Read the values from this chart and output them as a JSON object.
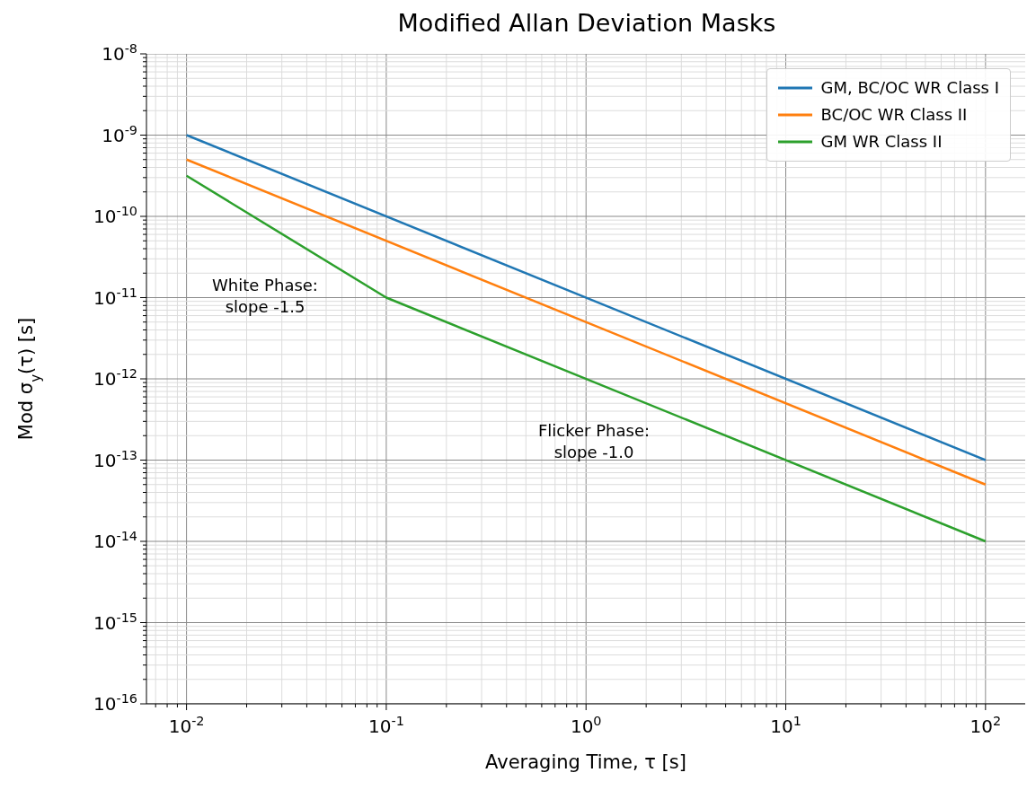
{
  "chart_data": {
    "type": "line",
    "title": "Modified Allan Deviation Masks",
    "xlabel": "Averaging Time, τ [s]",
    "ylabel": "Mod σ$_{y}$(τ) [s]",
    "series": [
      {
        "name": "GM, BC/OC WR Class I",
        "color": "#1f77b4",
        "x": [
          0.01,
          100
        ],
        "values": [
          1e-09,
          1e-13
        ]
      },
      {
        "name": "BC/OC WR Class II",
        "color": "#ff7f0e",
        "x": [
          0.01,
          100
        ],
        "values": [
          5e-10,
          5e-14
        ]
      },
      {
        "name": "GM WR Class II",
        "color": "#2ca02c",
        "x": [
          0.01,
          0.1,
          100
        ],
        "values": [
          3.16e-10,
          1e-11,
          1e-14
        ]
      }
    ],
    "annotations": [
      "White Phase:\nslope -1.5",
      "Flicker Phase:\nslope -1.0"
    ],
    "log": "xy",
    "grid": true,
    "legend": "top right",
    "xlim": [
      0.0063,
      158
    ],
    "ylim": [
      1e-16,
      1e-08
    ],
    "xticks": [
      {
        "value": 0.007,
        "label": null
      },
      {
        "value": 0.008,
        "label": null
      },
      {
        "value": 0.009,
        "label": null
      },
      {
        "value": 0.01,
        "label": "10$^{-2}$"
      },
      {
        "value": 0.02,
        "label": null
      },
      {
        "value": 0.03,
        "label": null
      },
      {
        "value": 0.04,
        "label": null
      },
      {
        "value": 0.05,
        "label": null
      },
      {
        "value": 0.06,
        "label": null
      },
      {
        "value": 0.07,
        "label": null
      },
      {
        "value": 0.08,
        "label": null
      },
      {
        "value": 0.09,
        "label": null
      },
      {
        "value": 0.1,
        "label": "10$^{-1}$"
      },
      {
        "value": 0.2,
        "label": null
      },
      {
        "value": 0.3,
        "label": null
      },
      {
        "value": 0.4,
        "label": null
      },
      {
        "value": 0.5,
        "label": null
      },
      {
        "value": 0.6,
        "label": null
      },
      {
        "value": 0.7,
        "label": null
      },
      {
        "value": 0.8,
        "label": null
      },
      {
        "value": 0.9,
        "label": null
      },
      {
        "value": 1,
        "label": "10$^{0}$"
      },
      {
        "value": 2,
        "label": null
      },
      {
        "value": 3,
        "label": null
      },
      {
        "value": 4,
        "label": null
      },
      {
        "value": 5,
        "label": null
      },
      {
        "value": 6,
        "label": null
      },
      {
        "value": 7,
        "label": null
      },
      {
        "value": 8,
        "label": null
      },
      {
        "value": 9,
        "label": null
      },
      {
        "value": 10,
        "label": "10$^{1}$"
      },
      {
        "value": 20,
        "label": null
      },
      {
        "value": 30,
        "label": null
      },
      {
        "value": 40,
        "label": null
      },
      {
        "value": 50,
        "label": null
      },
      {
        "value": 60,
        "label": null
      },
      {
        "value": 70,
        "label": null
      },
      {
        "value": 80,
        "label": null
      },
      {
        "value": 90,
        "label": null
      },
      {
        "value": 100,
        "label": "10$^{2}$"
      }
    ],
    "yticks": [
      {
        "value": 1e-16,
        "label": "10$^{-16}$"
      },
      {
        "value": 2e-16,
        "label": null
      },
      {
        "value": 3e-16,
        "label": null
      },
      {
        "value": 4e-16,
        "label": null
      },
      {
        "value": 5e-16,
        "label": null
      },
      {
        "value": 6e-16,
        "label": null
      },
      {
        "value": 7e-16,
        "label": null
      },
      {
        "value": 8e-16,
        "label": null
      },
      {
        "value": 9e-16,
        "label": null
      },
      {
        "value": 1e-15,
        "label": "10$^{-15}$"
      },
      {
        "value": 2e-15,
        "label": null
      },
      {
        "value": 3e-15,
        "label": null
      },
      {
        "value": 4e-15,
        "label": null
      },
      {
        "value": 5e-15,
        "label": null
      },
      {
        "value": 6e-15,
        "label": null
      },
      {
        "value": 7e-15,
        "label": null
      },
      {
        "value": 8e-15,
        "label": null
      },
      {
        "value": 9e-15,
        "label": null
      },
      {
        "value": 1e-14,
        "label": "10$^{-14}$"
      },
      {
        "value": 2e-14,
        "label": null
      },
      {
        "value": 3e-14,
        "label": null
      },
      {
        "value": 4e-14,
        "label": null
      },
      {
        "value": 5e-14,
        "label": null
      },
      {
        "value": 6e-14,
        "label": null
      },
      {
        "value": 7e-14,
        "label": null
      },
      {
        "value": 8e-14,
        "label": null
      },
      {
        "value": 9e-14,
        "label": null
      },
      {
        "value": 1e-13,
        "label": "10$^{-13}$"
      },
      {
        "value": 2e-13,
        "label": null
      },
      {
        "value": 3e-13,
        "label": null
      },
      {
        "value": 4e-13,
        "label": null
      },
      {
        "value": 5e-13,
        "label": null
      },
      {
        "value": 6e-13,
        "label": null
      },
      {
        "value": 7e-13,
        "label": null
      },
      {
        "value": 8e-13,
        "label": null
      },
      {
        "value": 9e-13,
        "label": null
      },
      {
        "value": 1e-12,
        "label": "10$^{-12}$"
      },
      {
        "value": 2e-12,
        "label": null
      },
      {
        "value": 3e-12,
        "label": null
      },
      {
        "value": 4e-12,
        "label": null
      },
      {
        "value": 5e-12,
        "label": null
      },
      {
        "value": 6e-12,
        "label": null
      },
      {
        "value": 7e-12,
        "label": null
      },
      {
        "value": 8e-12,
        "label": null
      },
      {
        "value": 9e-12,
        "label": null
      },
      {
        "value": 1e-11,
        "label": "10$^{-11}$"
      },
      {
        "value": 2e-11,
        "label": null
      },
      {
        "value": 3e-11,
        "label": null
      },
      {
        "value": 4e-11,
        "label": null
      },
      {
        "value": 5e-11,
        "label": null
      },
      {
        "value": 6e-11,
        "label": null
      },
      {
        "value": 7e-11,
        "label": null
      },
      {
        "value": 8e-11,
        "label": null
      },
      {
        "value": 9e-11,
        "label": null
      },
      {
        "value": 1e-10,
        "label": "10$^{-10}$"
      },
      {
        "value": 2e-10,
        "label": null
      },
      {
        "value": 3e-10,
        "label": null
      },
      {
        "value": 4e-10,
        "label": null
      },
      {
        "value": 5e-10,
        "label": null
      },
      {
        "value": 6e-10,
        "label": null
      },
      {
        "value": 7e-10,
        "label": null
      },
      {
        "value": 8e-10,
        "label": null
      },
      {
        "value": 9e-10,
        "label": null
      },
      {
        "value": 1e-09,
        "label": "10$^{-9}$"
      },
      {
        "value": 2e-09,
        "label": null
      },
      {
        "value": 3e-09,
        "label": null
      },
      {
        "value": 4e-09,
        "label": null
      },
      {
        "value": 5e-09,
        "label": null
      },
      {
        "value": 6e-09,
        "label": null
      },
      {
        "value": 7e-09,
        "label": null
      },
      {
        "value": 8e-09,
        "label": null
      },
      {
        "value": 9e-09,
        "label": null
      },
      {
        "value": 1e-08,
        "label": "10$^{-8}$"
      }
    ]
  }
}
